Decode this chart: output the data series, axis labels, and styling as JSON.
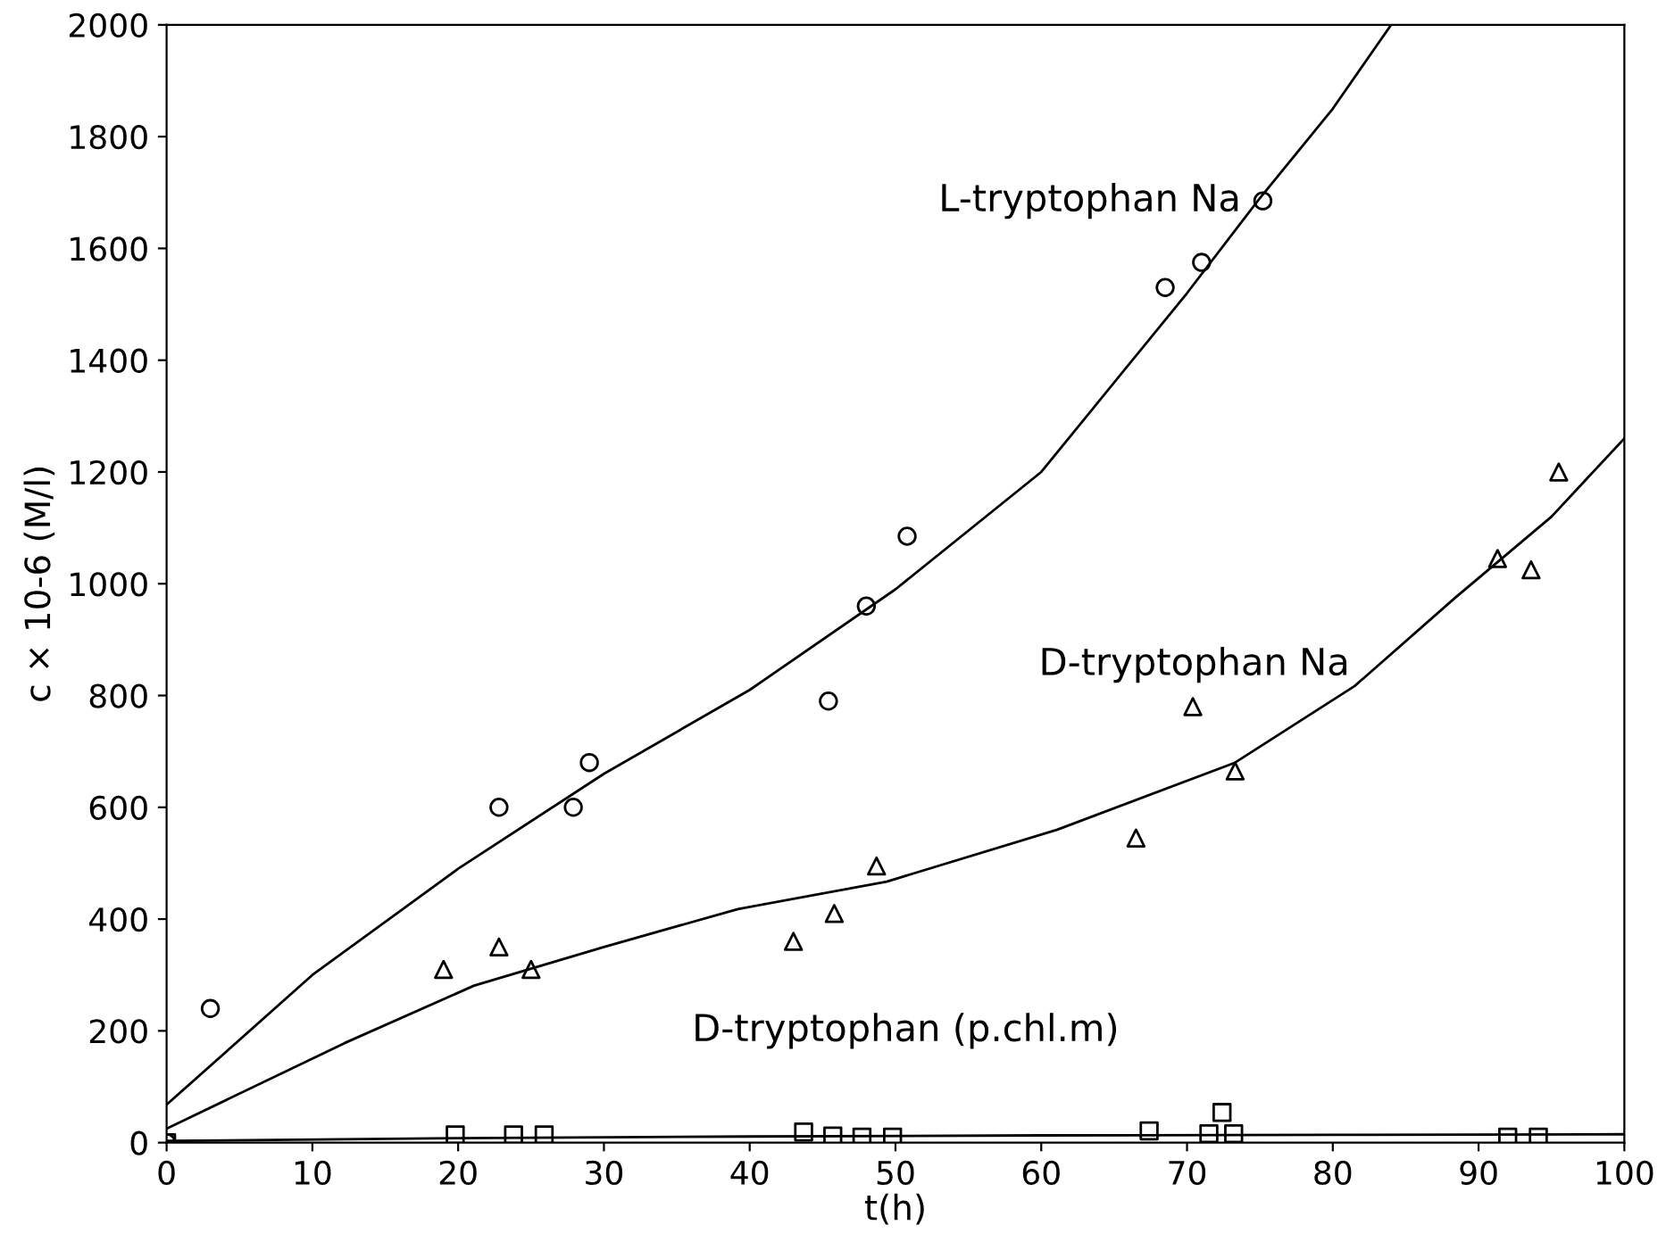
{
  "chart_data": {
    "type": "scatter",
    "xlabel": "t(h)",
    "ylabel": "c × 10-6 (M/l)",
    "xlim": [
      0,
      100
    ],
    "ylim": [
      0,
      2000
    ],
    "xticks": [
      0,
      10,
      20,
      30,
      40,
      50,
      60,
      70,
      80,
      90,
      100
    ],
    "yticks": [
      0,
      200,
      400,
      600,
      800,
      1000,
      1200,
      1400,
      1600,
      1800,
      2000
    ],
    "grid": false,
    "legend": false,
    "series": [
      {
        "name": "L-tryptophan Na",
        "marker": "circle",
        "color": "#000000",
        "x": [
          0,
          3,
          22.8,
          27.9,
          29,
          45.4,
          48,
          50.8,
          68.5,
          71,
          75.2
        ],
        "values": [
          0,
          240,
          600,
          600,
          680,
          790,
          960,
          1085,
          1530,
          1575,
          1685
        ]
      },
      {
        "name": "D-tryptophan Na",
        "marker": "triangle",
        "color": "#000000",
        "x": [
          19,
          22.8,
          25,
          43,
          45.8,
          48.7,
          66.5,
          70.4,
          73.3,
          91.3,
          93.6,
          95.5
        ],
        "values": [
          310,
          350,
          310,
          360,
          410,
          495,
          545,
          780,
          665,
          1045,
          1025,
          1200
        ]
      },
      {
        "name": "D-tryptophan (p.chl.m)",
        "marker": "square",
        "color": "#000000",
        "x": [
          0,
          19.8,
          23.8,
          25.9,
          43.7,
          45.7,
          47.7,
          49.8,
          67.4,
          71.5,
          72.4,
          73.2,
          92,
          94.1
        ],
        "values": [
          0,
          14,
          14,
          14,
          19,
          12,
          10,
          10,
          21,
          16,
          54,
          16,
          10,
          10
        ]
      },
      {
        "type": "line",
        "color": "#000000",
        "x": [
          0,
          10,
          20,
          30,
          40,
          50,
          60,
          70,
          75,
          80,
          84
        ],
        "values": [
          68,
          300,
          490,
          660,
          810,
          990,
          1200,
          1520,
          1690,
          1850,
          2000
        ]
      },
      {
        "type": "line",
        "color": "#000000",
        "x": [
          0,
          12.2,
          21.1,
          30,
          39.2,
          49.4,
          61.1,
          73.3,
          81.5,
          88.4,
          95,
          100
        ],
        "values": [
          25,
          178,
          281,
          350,
          418,
          467,
          560,
          680,
          817,
          975,
          1120,
          1260
        ]
      },
      {
        "type": "line",
        "color": "#000000",
        "x": [
          0,
          20,
          40,
          60,
          80,
          100
        ],
        "values": [
          3,
          8,
          11,
          13,
          14,
          15
        ]
      }
    ]
  }
}
